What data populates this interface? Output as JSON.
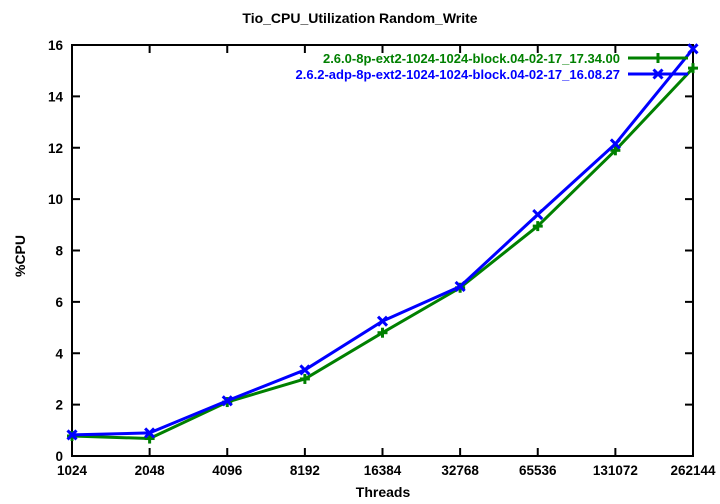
{
  "chart_data": {
    "type": "line",
    "title": "Tio_CPU_Utilization Random_Write",
    "xlabel": "Threads",
    "ylabel": "%CPU",
    "x_tick_labels": [
      "1024",
      "2048",
      "4096",
      "8192",
      "16384",
      "32768",
      "65536",
      "131072",
      "262144"
    ],
    "x_values": [
      1024,
      2048,
      4096,
      8192,
      16384,
      32768,
      65536,
      131072,
      262144
    ],
    "x_scale": "log2",
    "ylim": [
      0,
      16
    ],
    "y_ticks": [
      0,
      2,
      4,
      6,
      8,
      10,
      12,
      14,
      16
    ],
    "grid": "off",
    "legend_position": "top-right-inside",
    "axis_color": "#000000",
    "series": [
      {
        "name": "2.6.0-8p-ext2-1024-1024-block.04-02-17_17.34.00",
        "color": "#008000",
        "marker": "plus",
        "values": [
          0.78,
          0.68,
          2.1,
          3.0,
          4.8,
          6.55,
          8.95,
          11.9,
          15.1
        ]
      },
      {
        "name": "2.6.2-adp-8p-ext2-1024-1024-block.04-02-17_16.08.27",
        "color": "#0000ff",
        "marker": "cross",
        "values": [
          0.82,
          0.9,
          2.15,
          3.35,
          5.25,
          6.6,
          9.4,
          12.15,
          15.85
        ]
      }
    ]
  }
}
